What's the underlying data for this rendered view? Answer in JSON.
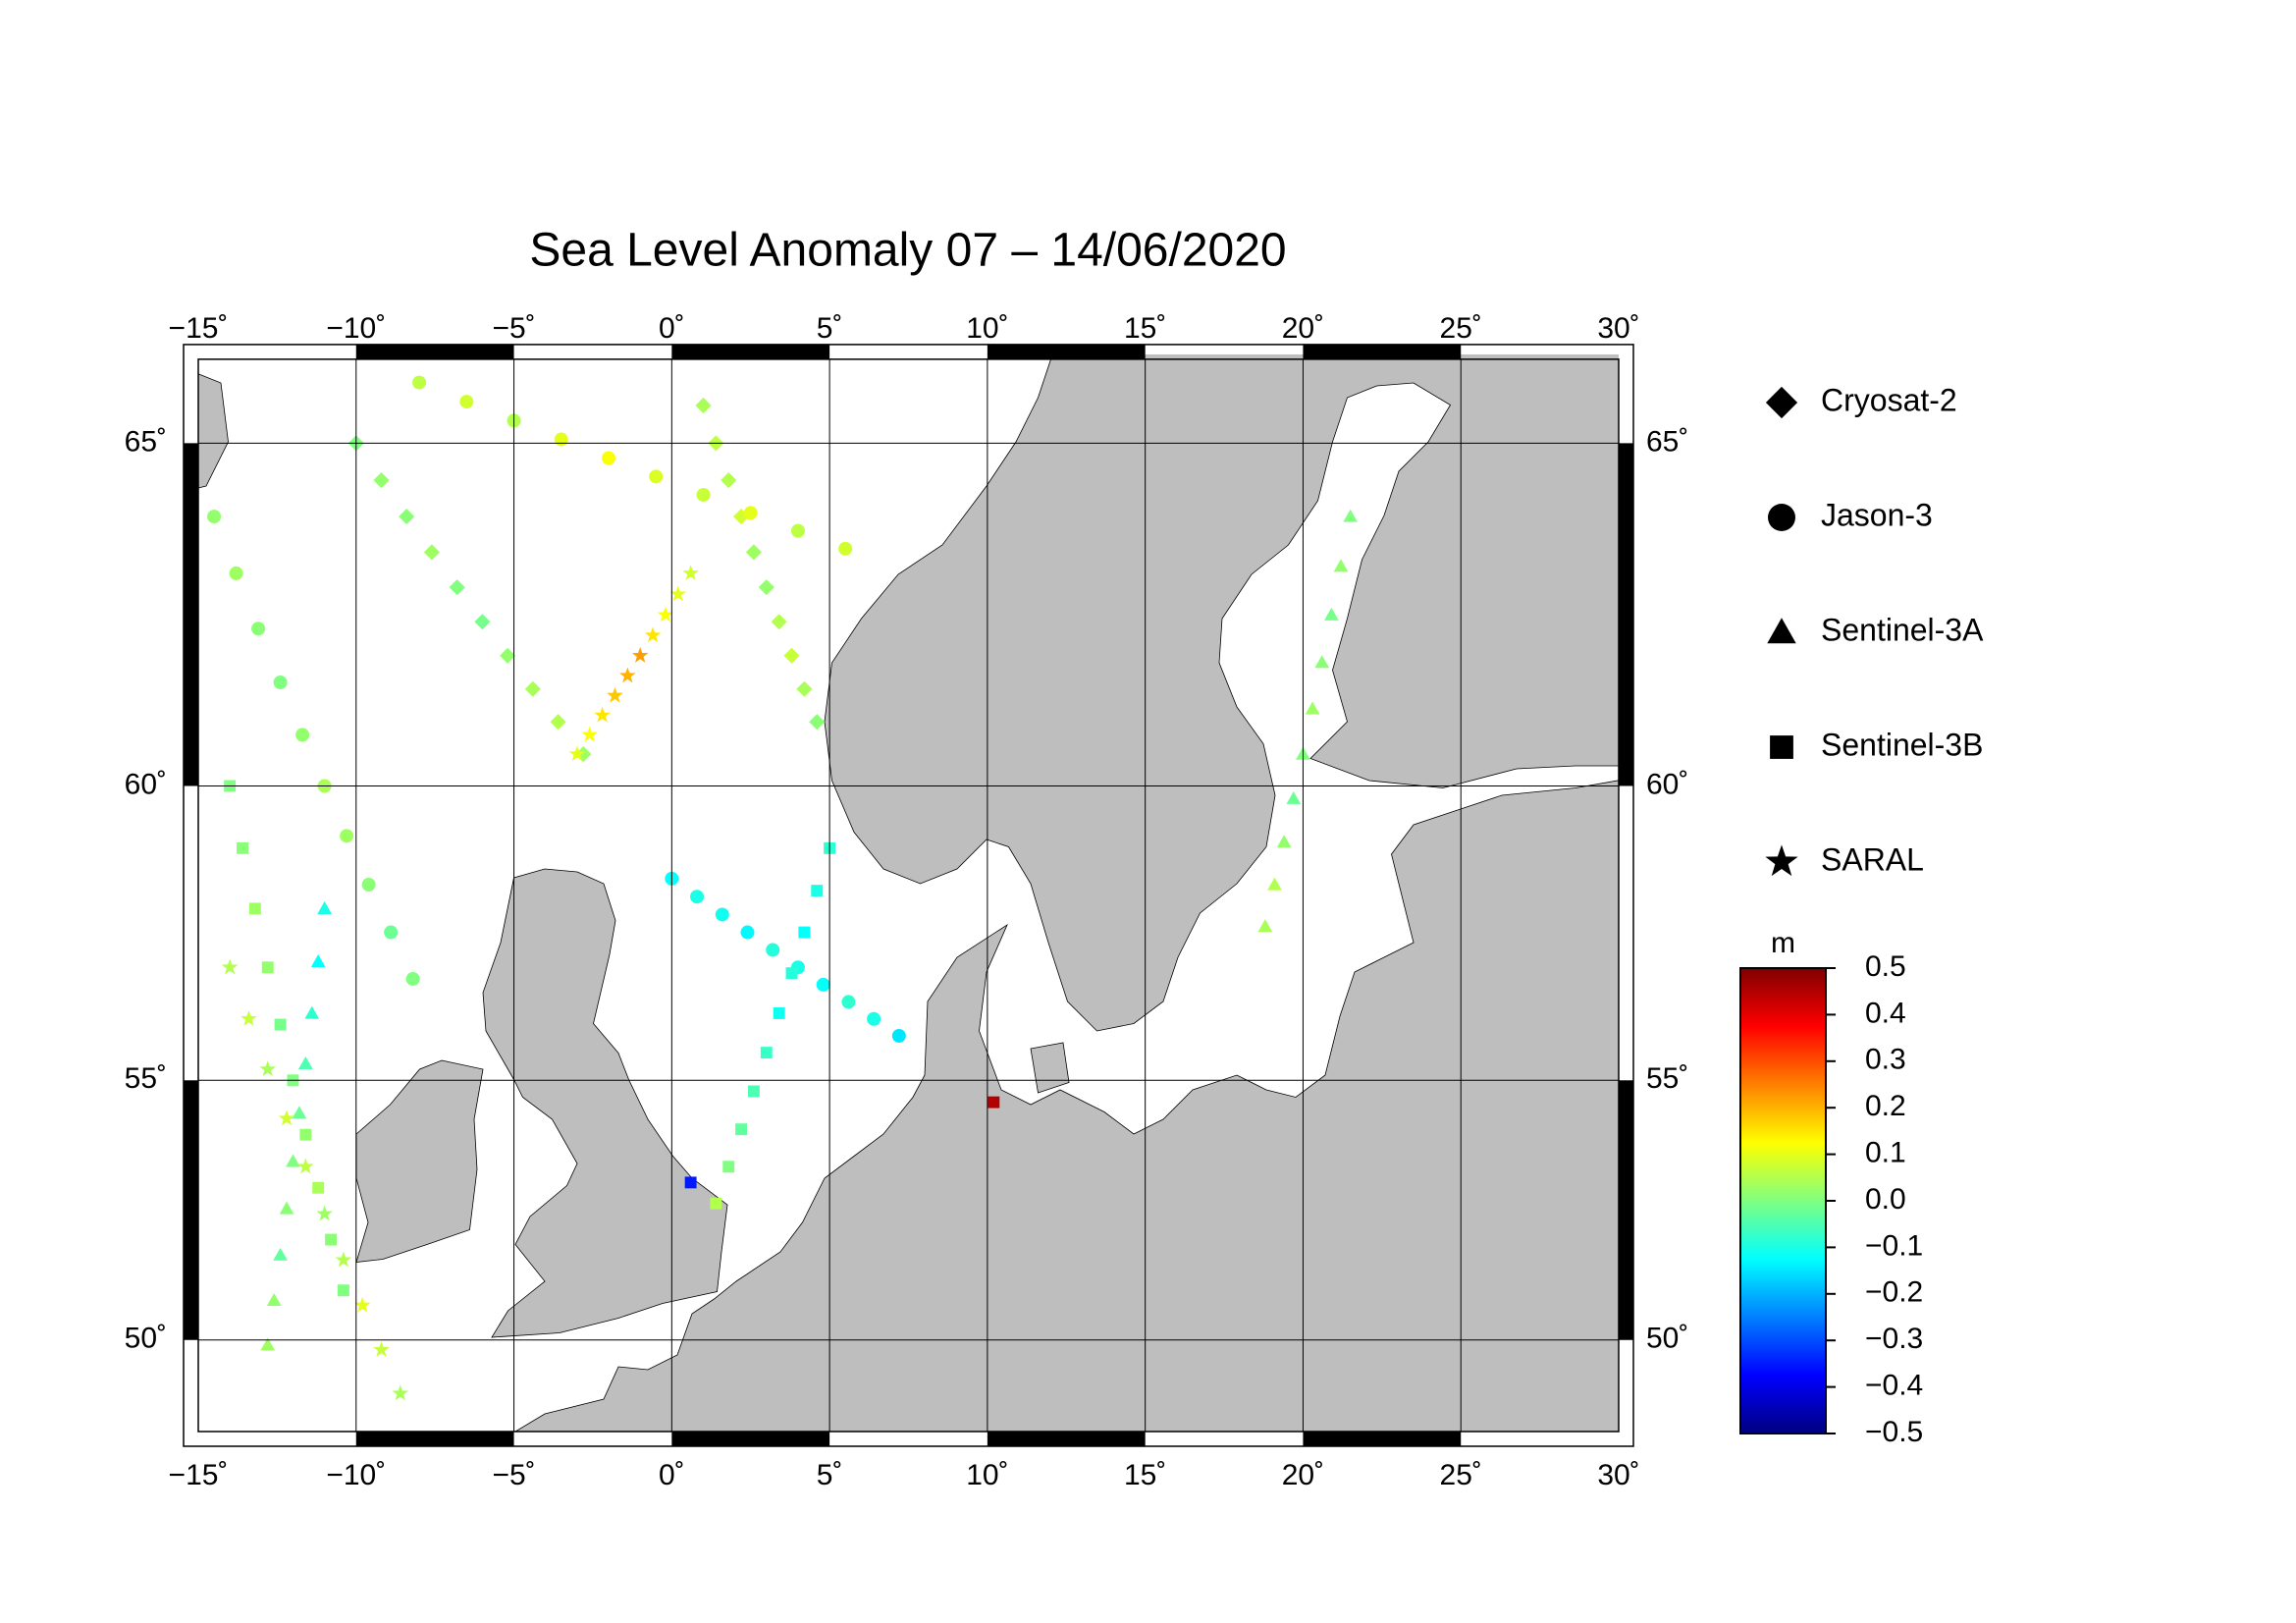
{
  "chart_data": {
    "type": "scatter",
    "title": "Sea Level Anomaly 07 – 14/06/2020",
    "projection": "mercator",
    "xlim": [
      -15,
      30
    ],
    "ylim": [
      48.1,
      66.1
    ],
    "xticks": [
      {
        "value": -15,
        "label": "−15˚"
      },
      {
        "value": -10,
        "label": "−10˚"
      },
      {
        "value": -5,
        "label": "−5˚"
      },
      {
        "value": 0,
        "label": "0˚"
      },
      {
        "value": 5,
        "label": "5˚"
      },
      {
        "value": 10,
        "label": "10˚"
      },
      {
        "value": 15,
        "label": "15˚"
      },
      {
        "value": 20,
        "label": "20˚"
      },
      {
        "value": 25,
        "label": "25˚"
      },
      {
        "value": 30,
        "label": "30˚"
      }
    ],
    "yticks": [
      {
        "value": 50,
        "label": "50˚"
      },
      {
        "value": 55,
        "label": "55˚"
      },
      {
        "value": 60,
        "label": "60˚"
      },
      {
        "value": 65,
        "label": "65˚"
      }
    ],
    "grid": true,
    "land_color": "#bebebe",
    "colorbar": {
      "label": "m",
      "clim": [
        -0.5,
        0.5
      ],
      "colormap": [
        "#000080",
        "#0000ff",
        "#0080ff",
        "#00ffff",
        "#80ff80",
        "#ffff00",
        "#ff8000",
        "#ff0000",
        "#800000"
      ],
      "ticks": [
        0.5,
        0.4,
        0.3,
        0.2,
        0.1,
        {
          "value": 0,
          "label": "0.0"
        },
        {
          "value": -0.1,
          "label": "−0.1"
        },
        {
          "value": -0.2,
          "label": "−0.2"
        },
        {
          "value": -0.3,
          "label": "−0.3"
        },
        {
          "value": -0.4,
          "label": "−0.4"
        },
        {
          "value": -0.5,
          "label": "−0.5"
        }
      ]
    },
    "series": [
      {
        "name": "Cryosat-2",
        "marker": "diamond",
        "x": [
          -10,
          -9.2,
          -8.4,
          -7.6,
          -6.8,
          -6,
          -5.2,
          -4.4,
          -3.6,
          -2.8,
          1,
          1.4,
          1.8,
          2.2,
          2.6,
          3,
          3.4,
          3.8,
          4.2,
          4.6
        ],
        "y": [
          65,
          64.5,
          64,
          63.5,
          63,
          62.5,
          62,
          61.5,
          61,
          60.5,
          65.5,
          65,
          64.5,
          64,
          63.5,
          63,
          62.5,
          62,
          61.5,
          61
        ],
        "values": [
          0,
          0.02,
          0.01,
          0.03,
          0,
          -0.01,
          0.02,
          0.04,
          0.05,
          0.03,
          0.04,
          0.06,
          0.05,
          0.08,
          0.03,
          0.02,
          0.05,
          0.07,
          0.04,
          0.01
        ]
      },
      {
        "name": "Jason-3",
        "marker": "circle",
        "x": [
          -14.5,
          -13.8,
          -13.1,
          -12.4,
          -11.7,
          -11,
          -10.3,
          -9.6,
          -8.9,
          -8.2,
          0,
          0.8,
          1.6,
          2.4,
          3.2,
          4,
          4.8,
          5.6,
          6.4,
          7.2,
          -8,
          -6.5,
          -5,
          -3.5,
          -2,
          -0.5,
          1,
          2.5,
          4,
          5.5
        ],
        "y": [
          64,
          63.2,
          62.4,
          61.6,
          60.8,
          60,
          59.2,
          58.4,
          57.6,
          56.8,
          58.5,
          58.2,
          57.9,
          57.6,
          57.3,
          57,
          56.7,
          56.4,
          56.1,
          55.8,
          65.8,
          65.55,
          65.3,
          65.05,
          64.8,
          64.55,
          64.3,
          64.05,
          63.8,
          63.55
        ],
        "values": [
          0.02,
          0.03,
          0.01,
          0,
          0.02,
          0.04,
          0.03,
          0.01,
          -0.02,
          0,
          -0.12,
          -0.1,
          -0.11,
          -0.13,
          -0.09,
          -0.1,
          -0.12,
          -0.08,
          -0.1,
          -0.15,
          0.06,
          0.08,
          0.05,
          0.1,
          0.12,
          0.09,
          0.07,
          0.1,
          0.06,
          0.08
        ]
      },
      {
        "name": "Sentinel-3A",
        "marker": "triangle",
        "x": [
          -11,
          -11.2,
          -11.4,
          -11.6,
          -11.8,
          -12,
          -12.2,
          -12.4,
          -12.6,
          -12.8,
          21.5,
          21.2,
          20.9,
          20.6,
          20.3,
          20,
          19.7,
          19.4,
          19.1,
          18.8
        ],
        "y": [
          58,
          57.1,
          56.2,
          55.3,
          54.4,
          53.5,
          52.6,
          51.7,
          50.8,
          49.9,
          64,
          63.3,
          62.6,
          61.9,
          61.2,
          60.5,
          59.8,
          59.1,
          58.4,
          57.7
        ],
        "values": [
          -0.1,
          -0.12,
          -0.08,
          -0.05,
          -0.02,
          0,
          0.01,
          -0.03,
          0.02,
          0.03,
          0,
          0.02,
          -0.01,
          0.01,
          0.03,
          0,
          -0.02,
          0.02,
          0.05,
          0.04
        ]
      },
      {
        "name": "Sentinel-3B",
        "marker": "square",
        "x": [
          -14,
          -13.6,
          -13.2,
          -12.8,
          -12.4,
          -12,
          -11.6,
          -11.2,
          -10.8,
          -10.4,
          5,
          4.6,
          4.2,
          3.8,
          3.4,
          3,
          2.6,
          2.2,
          1.8,
          1.4,
          10.2,
          0.6
        ],
        "y": [
          60,
          59,
          58,
          57,
          56,
          55,
          54,
          53,
          52,
          51,
          59,
          58.3,
          57.6,
          56.9,
          56.2,
          55.5,
          54.8,
          54.1,
          53.4,
          52.7,
          54.6,
          53.1
        ],
        "values": [
          0,
          0.01,
          0.03,
          0.02,
          -0.01,
          0,
          0.02,
          0.04,
          0.01,
          0,
          -0.08,
          -0.1,
          -0.12,
          -0.09,
          -0.11,
          -0.07,
          -0.05,
          -0.03,
          0,
          0.05,
          0.45,
          -0.35
        ]
      },
      {
        "name": "SARAL",
        "marker": "star",
        "x": [
          -14,
          -13.4,
          -12.8,
          -12.2,
          -11.6,
          -11,
          -10.4,
          -9.8,
          -9.2,
          -8.6,
          -3,
          -2.6,
          -2.2,
          -1.8,
          -1.4,
          -1,
          -0.6,
          -0.2,
          0.2,
          0.6
        ],
        "y": [
          57,
          56.1,
          55.2,
          54.3,
          53.4,
          52.5,
          51.6,
          50.7,
          49.8,
          48.9,
          60.5,
          60.8,
          61.1,
          61.4,
          61.7,
          62,
          62.3,
          62.6,
          62.9,
          63.2
        ],
        "values": [
          0.05,
          0.07,
          0.04,
          0.08,
          0.06,
          0.03,
          0.05,
          0.1,
          0.07,
          0.04,
          0.1,
          0.12,
          0.15,
          0.18,
          0.2,
          0.22,
          0.15,
          0.12,
          0.1,
          0.08
        ]
      }
    ]
  }
}
